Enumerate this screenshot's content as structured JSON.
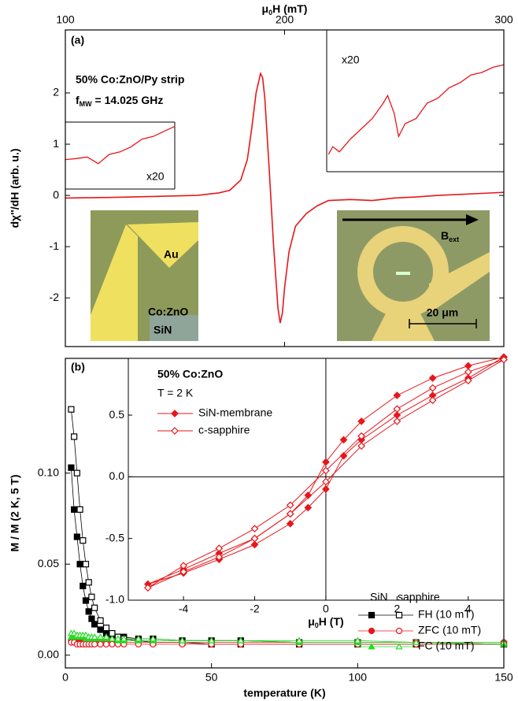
{
  "chart_data": [
    {
      "type": "line",
      "panel_label": "(a)",
      "title": "50% Co:ZnO/Py strip",
      "subtitle": [
        "f",
        "MW",
        " = 14.025 GHz"
      ],
      "xlabel": [
        "μ",
        "0",
        "H (mT)"
      ],
      "ylabel": "dχ''/dH (arb. u.)",
      "xlim": [
        100,
        300
      ],
      "xticks": [
        100,
        200,
        300
      ],
      "ylim": [
        -2.95,
        3.23
      ],
      "yticks": [
        -2,
        -1,
        0,
        1,
        2
      ],
      "x": [
        100,
        120,
        140,
        160,
        170,
        175,
        180,
        183,
        185,
        187,
        189,
        190,
        191,
        193,
        195,
        197,
        198,
        199,
        200,
        202,
        205,
        210,
        215,
        220,
        230,
        240,
        250,
        260,
        270,
        280,
        290,
        300
      ],
      "series": [
        {
          "color": "#e8161b",
          "values": [
            -0.05,
            -0.04,
            -0.02,
            0.0,
            0.05,
            0.1,
            0.3,
            0.7,
            1.3,
            2.0,
            2.38,
            2.3,
            1.9,
            0.5,
            -1.0,
            -2.2,
            -2.49,
            -2.3,
            -1.8,
            -1.1,
            -0.6,
            -0.35,
            -0.2,
            -0.1,
            -0.08,
            -0.1,
            -0.05,
            -0.03,
            0,
            0.02,
            0.04,
            0.06
          ]
        }
      ],
      "insets": [
        {
          "label": "x20",
          "color": "#e8161b",
          "x": [
            100,
            105,
            110,
            115,
            120,
            125,
            130,
            135,
            140,
            145,
            150
          ],
          "values": [
            0.7,
            0.72,
            0.75,
            0.62,
            0.8,
            0.85,
            0.95,
            1.1,
            1.15,
            1.25,
            1.35
          ]
        },
        {
          "label": "x20",
          "color": "#e8161b",
          "x": [
            220,
            222,
            225,
            230,
            235,
            240,
            245,
            247,
            250,
            252,
            255,
            260,
            265,
            270,
            275,
            280,
            285,
            290,
            295,
            300
          ],
          "values": [
            0.8,
            0.95,
            0.85,
            1.1,
            1.3,
            1.5,
            1.8,
            1.95,
            1.6,
            1.15,
            1.4,
            1.5,
            1.8,
            1.9,
            2.1,
            2.2,
            2.35,
            2.4,
            2.5,
            2.55
          ]
        }
      ],
      "photo_labels": {
        "left": [
          "Au",
          "Co:ZnO",
          "SiN"
        ],
        "right": {
          "field": [
            "B",
            "ext"
          ],
          "scale": "20 μm"
        }
      }
    },
    {
      "type": "scatter-line",
      "panel_label": "(b)",
      "xlabel": "temperature (K)",
      "ylabel": "M / M (2 K, 5 T)",
      "xlim": [
        0,
        150
      ],
      "xticks": [
        0,
        50,
        100,
        150
      ],
      "ylim": [
        -0.007,
        0.163
      ],
      "yticks": [
        {
          "value": 0,
          "label": "0.00"
        },
        {
          "value": 0.05,
          "label": "0.05"
        },
        {
          "value": 0.1,
          "label": "0.10"
        }
      ],
      "legend_columns": [
        "SiN",
        "sapphire"
      ],
      "x": [
        2,
        3,
        4,
        5,
        6,
        7,
        8,
        9,
        10,
        12,
        14,
        16,
        18,
        20,
        25,
        30,
        40,
        50,
        60,
        80,
        100,
        120,
        150
      ],
      "series": [
        {
          "name": "FH (10 mT)",
          "color": "#000000",
          "marker": "square",
          "values": [
            0.103,
            0.08,
            0.065,
            0.05,
            0.038,
            0.03,
            0.024,
            0.02,
            0.017,
            0.014,
            0.012,
            0.011,
            0.01,
            0.01,
            0.009,
            0.009,
            0.008,
            0.008,
            0.008,
            0.007,
            0.007,
            0.007,
            0.006
          ],
          "values_open": [
            0.135,
            0.12,
            0.1,
            0.08,
            0.063,
            0.05,
            0.04,
            0.032,
            0.026,
            0.019,
            0.015,
            0.012,
            0.01,
            0.009,
            0.008,
            0.007,
            0.007,
            0.006,
            0.006,
            0.006,
            0.006,
            0.006,
            0.006
          ]
        },
        {
          "name": "ZFC (10 mT)",
          "color": "#e8161b",
          "marker": "circle",
          "values": [
            0.008,
            0.008,
            0.008,
            0.008,
            0.008,
            0.008,
            0.008,
            0.008,
            0.008,
            0.008,
            0.008,
            0.008,
            0.007,
            0.007,
            0.007,
            0.007,
            0.007,
            0.007,
            0.007,
            0.007,
            0.007,
            0.007,
            0.007
          ],
          "values_open": [
            0.007,
            0.007,
            0.006,
            0.006,
            0.006,
            0.006,
            0.006,
            0.006,
            0.006,
            0.006,
            0.006,
            0.006,
            0.006,
            0.006,
            0.006,
            0.006,
            0.006,
            0.006,
            0.006,
            0.006,
            0.006,
            0.006,
            0.006
          ]
        },
        {
          "name": "FC (10 mT)",
          "color": "#22dd22",
          "marker": "triangle",
          "values": [
            0.01,
            0.01,
            0.01,
            0.01,
            0.01,
            0.009,
            0.009,
            0.009,
            0.009,
            0.009,
            0.009,
            0.009,
            0.008,
            0.008,
            0.008,
            0.008,
            0.008,
            0.008,
            0.008,
            0.007,
            0.007,
            0.007,
            0.006
          ],
          "values_open": [
            0.012,
            0.012,
            0.011,
            0.011,
            0.011,
            0.011,
            0.01,
            0.01,
            0.01,
            0.01,
            0.01,
            0.009,
            0.009,
            0.009,
            0.009,
            0.009,
            0.008,
            0.008,
            0.008,
            0.008,
            0.008,
            0.007,
            0.007
          ]
        }
      ]
    },
    {
      "type": "loop",
      "title": "50% Co:ZnO",
      "subtitle": "T = 2 K",
      "xlabel": [
        "μ",
        "0",
        "H (T)"
      ],
      "xlim": [
        -5.55,
        5
      ],
      "xticks": [
        -4,
        -2,
        0,
        2,
        4
      ],
      "ylim": [
        -1,
        0.96
      ],
      "yticks": [
        {
          "value": -1,
          "label": "-1.0"
        },
        {
          "value": -0.5,
          "label": "-0.5"
        },
        {
          "value": 0,
          "label": "0.0"
        },
        0.5
      ],
      "series": [
        {
          "name": "SiN-membrane",
          "color": "#e8161b",
          "marker": "diamond",
          "filled": true,
          "x": [
            5,
            4,
            3,
            2,
            1,
            0.5,
            0,
            -0.5,
            -1,
            -2,
            -3,
            -4,
            -5,
            -4,
            -3,
            -2,
            -1,
            -0.5,
            0,
            0.5,
            1,
            2,
            3,
            4,
            5
          ],
          "values": [
            0.97,
            0.9,
            0.8,
            0.66,
            0.45,
            0.3,
            0.12,
            -0.15,
            -0.3,
            -0.5,
            -0.62,
            -0.75,
            -0.87,
            -0.78,
            -0.67,
            -0.55,
            -0.38,
            -0.25,
            -0.1,
            0.17,
            0.3,
            0.5,
            0.66,
            0.8,
            0.97
          ]
        },
        {
          "name": "c-sapphire",
          "color": "#e8161b",
          "marker": "diamond",
          "filled": false,
          "x": [
            5,
            4,
            3,
            2,
            1,
            0,
            -1,
            -2,
            -3,
            -4,
            -5,
            -4,
            -3,
            -2,
            -1,
            0,
            1,
            2,
            3,
            4,
            5
          ],
          "values": [
            0.95,
            0.85,
            0.72,
            0.55,
            0.33,
            0.05,
            -0.23,
            -0.42,
            -0.58,
            -0.72,
            -0.9,
            -0.77,
            -0.65,
            -0.5,
            -0.3,
            -0.04,
            0.25,
            0.45,
            0.62,
            0.78,
            0.95
          ]
        }
      ]
    }
  ]
}
